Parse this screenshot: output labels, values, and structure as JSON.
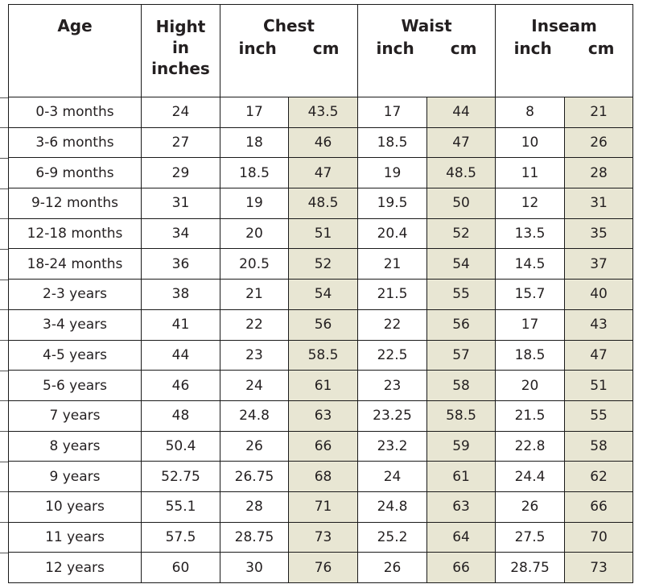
{
  "table": {
    "header": {
      "age": "Age",
      "height_lines": [
        "Hight",
        "in",
        "inches"
      ],
      "groups": [
        {
          "name": "Chest",
          "units": [
            "inch",
            "cm"
          ]
        },
        {
          "name": "Waist",
          "units": [
            "inch",
            "cm"
          ]
        },
        {
          "name": "Inseam",
          "units": [
            "inch",
            "cm"
          ]
        }
      ]
    },
    "rows": [
      [
        "0-3 months",
        "24",
        "17",
        "43.5",
        "17",
        "44",
        "8",
        "21"
      ],
      [
        "3-6 months",
        "27",
        "18",
        "46",
        "18.5",
        "47",
        "10",
        "26"
      ],
      [
        "6-9 months",
        "29",
        "18.5",
        "47",
        "19",
        "48.5",
        "11",
        "28"
      ],
      [
        "9-12 months",
        "31",
        "19",
        "48.5",
        "19.5",
        "50",
        "12",
        "31"
      ],
      [
        "12-18 months",
        "34",
        "20",
        "51",
        "20.4",
        "52",
        "13.5",
        "35"
      ],
      [
        "18-24 months",
        "36",
        "20.5",
        "52",
        "21",
        "54",
        "14.5",
        "37"
      ],
      [
        "2-3 years",
        "38",
        "21",
        "54",
        "21.5",
        "55",
        "15.7",
        "40"
      ],
      [
        "3-4 years",
        "41",
        "22",
        "56",
        "22",
        "56",
        "17",
        "43"
      ],
      [
        "4-5 years",
        "44",
        "23",
        "58.5",
        "22.5",
        "57",
        "18.5",
        "47"
      ],
      [
        "5-6 years",
        "46",
        "24",
        "61",
        "23",
        "58",
        "20",
        "51"
      ],
      [
        "7 years",
        "48",
        "24.8",
        "63",
        "23.25",
        "58.5",
        "21.5",
        "55"
      ],
      [
        "8 years",
        "50.4",
        "26",
        "66",
        "23.2",
        "59",
        "22.8",
        "58"
      ],
      [
        "9 years",
        "52.75",
        "26.75",
        "68",
        "24",
        "61",
        "24.4",
        "62"
      ],
      [
        "10 years",
        "55.1",
        "28",
        "71",
        "24.8",
        "63",
        "26",
        "66"
      ],
      [
        "11 years",
        "57.5",
        "28.75",
        "73",
        "25.2",
        "64",
        "27.5",
        "70"
      ],
      [
        "12 years",
        "60",
        "30",
        "76",
        "26",
        "66",
        "28.75",
        "73"
      ]
    ]
  }
}
